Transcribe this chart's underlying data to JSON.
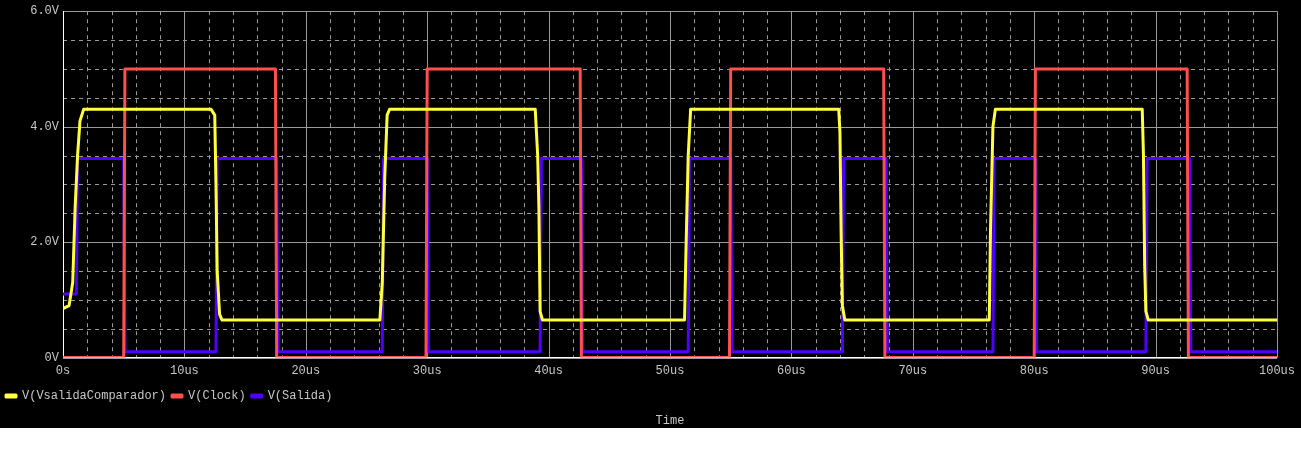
{
  "chart_data": {
    "type": "line",
    "xlabel": "Time",
    "xlim": [
      0,
      100
    ],
    "ylim": [
      0,
      6
    ],
    "xticks": [
      {
        "value": 0,
        "label": "0s"
      },
      {
        "value": 2,
        "label": null
      },
      {
        "value": 4,
        "label": null
      },
      {
        "value": 6,
        "label": null
      },
      {
        "value": 8,
        "label": null
      },
      {
        "value": 10,
        "label": "10us"
      },
      {
        "value": 12,
        "label": null
      },
      {
        "value": 14,
        "label": null
      },
      {
        "value": 16,
        "label": null
      },
      {
        "value": 18,
        "label": null
      },
      {
        "value": 20,
        "label": "20us"
      },
      {
        "value": 22,
        "label": null
      },
      {
        "value": 24,
        "label": null
      },
      {
        "value": 26,
        "label": null
      },
      {
        "value": 28,
        "label": null
      },
      {
        "value": 30,
        "label": "30us"
      },
      {
        "value": 32,
        "label": null
      },
      {
        "value": 34,
        "label": null
      },
      {
        "value": 36,
        "label": null
      },
      {
        "value": 38,
        "label": null
      },
      {
        "value": 40,
        "label": "40us"
      },
      {
        "value": 42,
        "label": null
      },
      {
        "value": 44,
        "label": null
      },
      {
        "value": 46,
        "label": null
      },
      {
        "value": 48,
        "label": null
      },
      {
        "value": 50,
        "label": "50us"
      },
      {
        "value": 52,
        "label": null
      },
      {
        "value": 54,
        "label": null
      },
      {
        "value": 56,
        "label": null
      },
      {
        "value": 58,
        "label": null
      },
      {
        "value": 60,
        "label": "60us"
      },
      {
        "value": 62,
        "label": null
      },
      {
        "value": 64,
        "label": null
      },
      {
        "value": 66,
        "label": null
      },
      {
        "value": 68,
        "label": null
      },
      {
        "value": 70,
        "label": "70us"
      },
      {
        "value": 72,
        "label": null
      },
      {
        "value": 74,
        "label": null
      },
      {
        "value": 76,
        "label": null
      },
      {
        "value": 78,
        "label": null
      },
      {
        "value": 80,
        "label": "80us"
      },
      {
        "value": 82,
        "label": null
      },
      {
        "value": 84,
        "label": null
      },
      {
        "value": 86,
        "label": null
      },
      {
        "value": 88,
        "label": null
      },
      {
        "value": 90,
        "label": "90us"
      },
      {
        "value": 92,
        "label": null
      },
      {
        "value": 94,
        "label": null
      },
      {
        "value": 96,
        "label": null
      },
      {
        "value": 98,
        "label": null
      },
      {
        "value": 100,
        "label": "100us"
      }
    ],
    "yticks": [
      {
        "value": 0,
        "label": "0V"
      },
      {
        "value": 0.5,
        "label": null
      },
      {
        "value": 1,
        "label": null
      },
      {
        "value": 1.5,
        "label": null
      },
      {
        "value": 2,
        "label": "2.0V"
      },
      {
        "value": 2.5,
        "label": null
      },
      {
        "value": 3,
        "label": null
      },
      {
        "value": 3.5,
        "label": null
      },
      {
        "value": 4,
        "label": "4.0V"
      },
      {
        "value": 4.5,
        "label": null
      },
      {
        "value": 5,
        "label": null
      },
      {
        "value": 5.5,
        "label": null
      },
      {
        "value": 6,
        "label": "6.0V"
      }
    ],
    "grid": true,
    "legend": "bottom left",
    "series": [
      {
        "name": "V(VsalidaComparador)",
        "color": "#ffff40",
        "x": [
          0,
          0.5,
          0.8,
          1.0,
          1.2,
          1.4,
          1.7,
          12.2,
          12.5,
          12.6,
          12.7,
          12.9,
          13.1,
          26.1,
          26.3,
          26.5,
          26.7,
          26.9,
          38.9,
          39.1,
          39.2,
          39.3,
          39.5,
          51.2,
          51.3,
          51.5,
          51.7,
          63.9,
          64.0,
          64.1,
          64.2,
          64.4,
          76.3,
          76.4,
          76.6,
          76.8,
          88.9,
          89.0,
          89.1,
          89.2,
          89.4,
          100
        ],
        "values": [
          0.85,
          0.9,
          1.3,
          2.6,
          3.5,
          4.1,
          4.3,
          4.3,
          4.2,
          3.0,
          1.5,
          0.75,
          0.65,
          0.65,
          1.3,
          3.1,
          4.2,
          4.3,
          4.3,
          3.5,
          2.6,
          0.8,
          0.65,
          0.65,
          1.7,
          3.5,
          4.3,
          4.3,
          3.9,
          2.1,
          0.9,
          0.65,
          0.65,
          2.2,
          4.0,
          4.3,
          4.3,
          3.5,
          1.6,
          0.8,
          0.65,
          0.65
        ]
      },
      {
        "name": "V(Clock)",
        "color": "#ff5050",
        "x": [
          0,
          5.0,
          5.1,
          17.5,
          17.6,
          29.9,
          30.0,
          42.6,
          42.7,
          54.9,
          55.0,
          67.6,
          67.7,
          80.0,
          80.1,
          92.6,
          92.7,
          100
        ],
        "values": [
          0,
          0,
          5,
          5,
          0,
          0,
          5,
          5,
          0,
          0,
          5,
          5,
          0,
          0,
          5,
          5,
          0,
          0
        ]
      },
      {
        "name": "V(Salida)",
        "color": "#5000ff",
        "x": [
          0,
          1.1,
          1.2,
          5.0,
          5.1,
          12.6,
          12.7,
          17.6,
          17.7,
          26.3,
          26.4,
          30.0,
          30.1,
          39.3,
          39.4,
          42.7,
          42.8,
          51.5,
          51.6,
          55.0,
          55.1,
          64.2,
          64.3,
          67.8,
          67.9,
          76.6,
          76.7,
          80.1,
          80.2,
          89.2,
          89.3,
          92.8,
          92.9,
          100
        ],
        "values": [
          1.1,
          1.1,
          3.45,
          3.45,
          0.1,
          0.1,
          3.45,
          3.45,
          0.1,
          0.1,
          3.45,
          3.45,
          0.1,
          0.1,
          3.45,
          3.45,
          0.1,
          0.1,
          3.45,
          3.45,
          0.1,
          0.1,
          3.45,
          3.45,
          0.1,
          0.1,
          3.45,
          3.45,
          0.1,
          0.1,
          3.45,
          3.45,
          0.1,
          0.1
        ]
      }
    ]
  }
}
